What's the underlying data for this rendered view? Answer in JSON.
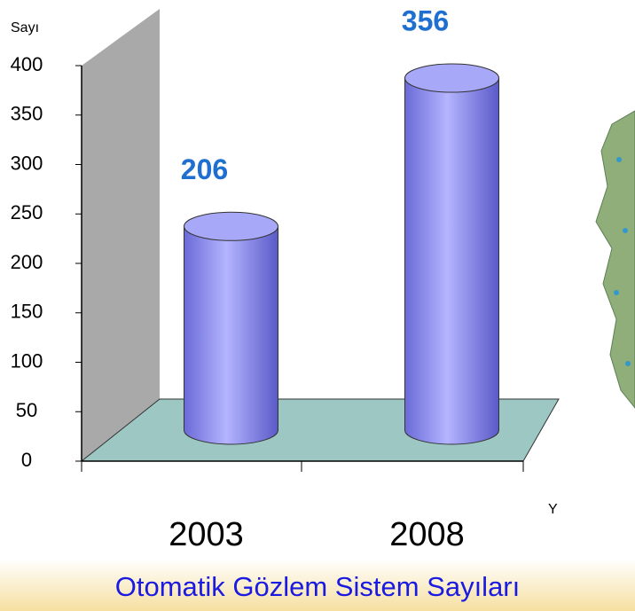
{
  "chart_data": {
    "type": "bar",
    "title": "Otomatik Gözlem Sistem Sayıları",
    "y_label": "Sayı",
    "x_label": "Y",
    "categories": [
      "2003",
      "2008"
    ],
    "values": [
      206,
      356
    ],
    "color": "#8f8ff0",
    "ylim": [
      0,
      400
    ],
    "yticks": [
      0,
      50,
      100,
      150,
      200,
      250,
      300,
      350,
      400
    ]
  }
}
